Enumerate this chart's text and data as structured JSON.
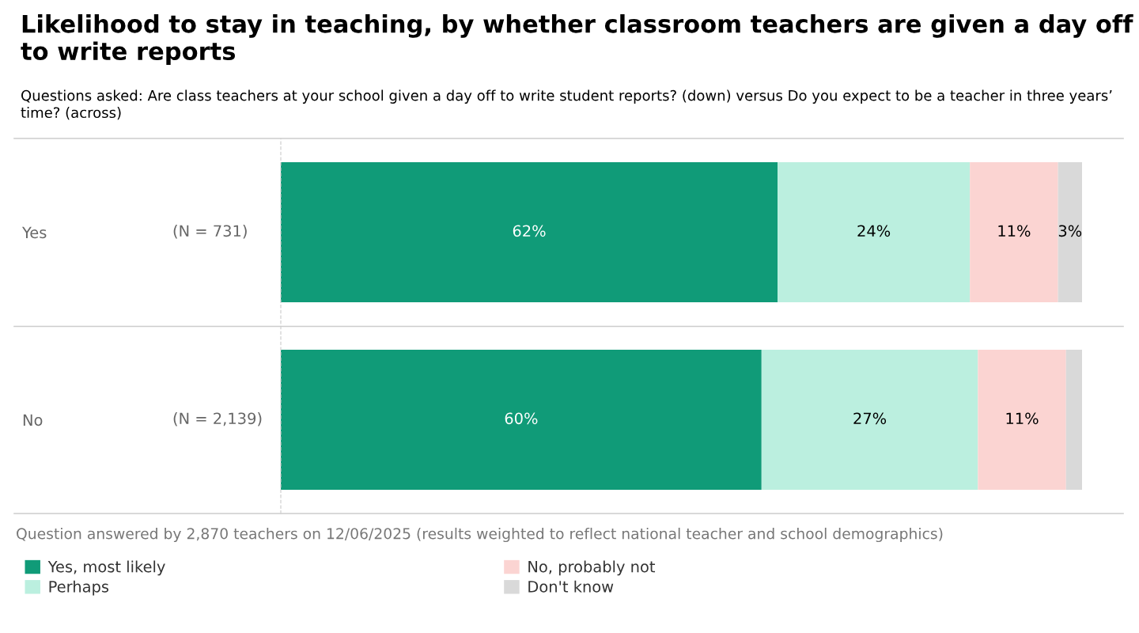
{
  "chart_data": {
    "type": "bar",
    "orientation": "horizontal",
    "stacked": true,
    "title": "Likelihood to stay in teaching, by whether classroom teachers are given a day off to write reports",
    "subtitle": "Questions asked: Are class teachers at your school given a day off to write student reports? (down) versus Do you expect to be a teacher in three years’ time? (across)",
    "categories": [
      "Yes",
      "No"
    ],
    "xlim": [
      0,
      100
    ],
    "tick_labels": "y",
    "legend": "bottom",
    "grid": false,
    "series": [
      {
        "name": "Yes, most likely",
        "color": "#109b78",
        "values": [
          62,
          60
        ],
        "value_labels": [
          "62%",
          "60%"
        ]
      },
      {
        "name": "Perhaps",
        "color": "#bbefdf",
        "values": [
          24,
          27
        ],
        "value_labels": [
          "24%",
          "27%"
        ]
      },
      {
        "name": "No, probably not",
        "color": "#fbd4d2",
        "values": [
          11,
          11
        ],
        "value_labels": [
          "11%",
          "11%"
        ]
      },
      {
        "name": "Don't know",
        "color": "#d9d9d9",
        "values": [
          3,
          2
        ],
        "value_labels": [
          "3%",
          null
        ]
      }
    ],
    "annotations": [
      "(N = 731)",
      "(N = 2,139)",
      "Question answered by 2,870 teachers on 12/06/2025 (results weighted to reflect national teacher and school demographics)"
    ]
  }
}
